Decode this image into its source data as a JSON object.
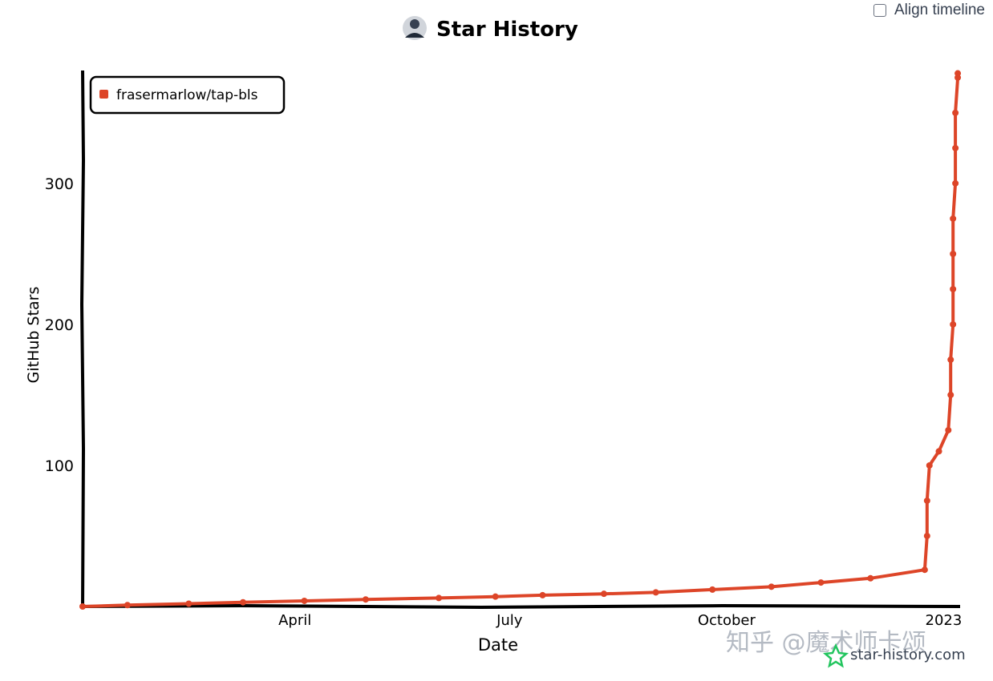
{
  "header": {
    "title": "Star History",
    "align_timeline_label": "Align timeline",
    "align_timeline_checked": false
  },
  "watermark": {
    "zhihu": "知乎 @魔术师卡颂",
    "site": "star-history.com"
  },
  "colors": {
    "series": "#dd4528",
    "axis": "#000000",
    "background": "#ffffff"
  },
  "chart_data": {
    "type": "line",
    "title": "Star History",
    "xlabel": "Date",
    "ylabel": "GitHub Stars",
    "x_ticks": [
      "April",
      "July",
      "October",
      "2023"
    ],
    "y_ticks": [
      100,
      200,
      300
    ],
    "ylim": [
      0,
      380
    ],
    "xlim": [
      "2022-01-01",
      "2023-01-08"
    ],
    "legend": {
      "position": "top-left",
      "entries": [
        "frasermarlow/tap-bls"
      ]
    },
    "grid": false,
    "series": [
      {
        "name": "frasermarlow/tap-bls",
        "color": "#dd4528",
        "points": [
          [
            "2022-01-01",
            0
          ],
          [
            "2022-01-20",
            1
          ],
          [
            "2022-02-15",
            2
          ],
          [
            "2022-03-10",
            3
          ],
          [
            "2022-04-05",
            4
          ],
          [
            "2022-05-01",
            5
          ],
          [
            "2022-06-01",
            6
          ],
          [
            "2022-06-25",
            7
          ],
          [
            "2022-07-15",
            8
          ],
          [
            "2022-08-10",
            9
          ],
          [
            "2022-09-01",
            10
          ],
          [
            "2022-09-25",
            12
          ],
          [
            "2022-10-20",
            14
          ],
          [
            "2022-11-10",
            17
          ],
          [
            "2022-12-01",
            20
          ],
          [
            "2022-12-24",
            26
          ],
          [
            "2022-12-25",
            50
          ],
          [
            "2022-12-25",
            75
          ],
          [
            "2022-12-26",
            100
          ],
          [
            "2022-12-30",
            110
          ],
          [
            "2023-01-03",
            125
          ],
          [
            "2023-01-04",
            150
          ],
          [
            "2023-01-04",
            175
          ],
          [
            "2023-01-05",
            200
          ],
          [
            "2023-01-05",
            225
          ],
          [
            "2023-01-05",
            250
          ],
          [
            "2023-01-05",
            275
          ],
          [
            "2023-01-06",
            300
          ],
          [
            "2023-01-06",
            325
          ],
          [
            "2023-01-06",
            350
          ],
          [
            "2023-01-07",
            375
          ],
          [
            "2023-01-07",
            378
          ]
        ]
      }
    ]
  }
}
